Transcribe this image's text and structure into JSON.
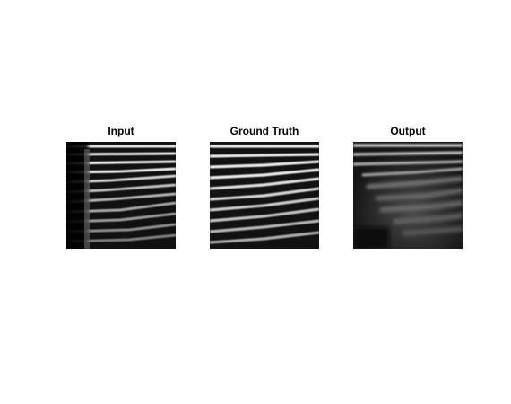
{
  "figure": {
    "panels": [
      {
        "key": "input",
        "title": "Input"
      },
      {
        "key": "ground_truth",
        "title": "Ground Truth"
      },
      {
        "key": "output",
        "title": "Output"
      }
    ]
  }
}
